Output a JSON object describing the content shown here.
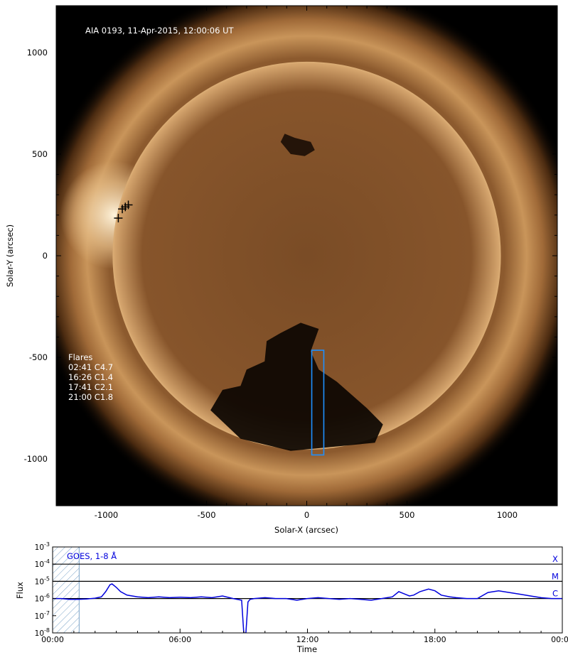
{
  "image_panel": {
    "header": "AIA 0193, 11-Apr-2015, 12:00:06 UT",
    "xlabel": "Solar-X (arcsec)",
    "ylabel": "Solar-Y (arcsec)",
    "xlim": [
      -1250,
      1250
    ],
    "ylim": [
      -1230,
      1230
    ],
    "x_ticks": [
      -1000,
      -500,
      0,
      500,
      1000
    ],
    "y_ticks": [
      1000,
      500,
      0,
      -500,
      -1000
    ],
    "solar_radius_arcsec": 965,
    "flares": {
      "heading": "Flares",
      "items": [
        "02:41 C4.7",
        "16:26 C1.4",
        "17:41 C2.1",
        "21:00 C1.8"
      ]
    },
    "flare_markers": [
      {
        "x": -940,
        "y": 185
      },
      {
        "x": -905,
        "y": 240
      },
      {
        "x": -890,
        "y": 250
      },
      {
        "x": -920,
        "y": 230
      }
    ],
    "selection_box": {
      "x0": 25,
      "x1": 85,
      "y0": -980,
      "y1": -465,
      "color": "#1e90ff"
    },
    "colors": {
      "background": "#000000",
      "text": "#ffffff",
      "disk": "#8a5a2b"
    }
  },
  "chart_data": {
    "type": "line",
    "legend": "GOES, 1-8 Å",
    "xlabel": "Time",
    "ylabel": "Flux",
    "xlim": [
      0,
      24
    ],
    "ylim_log10": [
      -8,
      -3
    ],
    "x_ticks": [
      "00:00",
      "06:00",
      "12:00",
      "18:00",
      "00:00"
    ],
    "y_ticks": [
      "10-3",
      "10-4",
      "10-5",
      "10-6",
      "10-7",
      "10-8"
    ],
    "class_levels": [
      {
        "label": "X",
        "log10_flux": -4
      },
      {
        "label": "M",
        "log10_flux": -5
      },
      {
        "label": "C",
        "log10_flux": -6
      }
    ],
    "hatched_interval_hours": [
      0,
      1.25
    ],
    "color": "#0000dd",
    "series": [
      {
        "x": [
          0,
          0.4,
          0.8,
          1.2,
          1.6,
          2.0,
          2.3,
          2.5,
          2.7,
          2.8,
          3.0,
          3.2,
          3.5,
          4.0,
          4.5,
          5.0,
          5.5,
          6.0,
          6.5,
          7.0,
          7.5,
          8.0,
          8.5,
          8.9,
          9.0,
          9.1,
          9.2,
          9.3,
          9.5,
          10.0,
          10.5,
          11.0,
          11.5,
          12.0,
          12.5,
          13.0,
          13.5,
          14.0,
          14.5,
          15.0,
          15.5,
          16.0,
          16.3,
          16.5,
          16.8,
          17.0,
          17.3,
          17.7,
          18.0,
          18.3,
          18.7,
          19.0,
          19.5,
          20.0,
          20.5,
          21.0,
          21.5,
          22.0,
          22.5,
          23.0,
          23.5,
          24.0
        ],
        "log10_flux": [
          -6.0,
          -6.0,
          -6.05,
          -6.05,
          -6.03,
          -5.98,
          -5.9,
          -5.6,
          -5.2,
          -5.15,
          -5.35,
          -5.6,
          -5.8,
          -5.9,
          -5.95,
          -5.9,
          -5.95,
          -5.92,
          -5.95,
          -5.9,
          -5.95,
          -5.85,
          -6.0,
          -6.1,
          -8.0,
          -8.0,
          -6.2,
          -6.05,
          -6.0,
          -5.95,
          -6.0,
          -6.0,
          -6.1,
          -6.0,
          -5.95,
          -6.0,
          -6.05,
          -6.0,
          -6.05,
          -6.1,
          -6.0,
          -5.9,
          -5.6,
          -5.7,
          -5.85,
          -5.8,
          -5.6,
          -5.45,
          -5.55,
          -5.8,
          -5.9,
          -5.95,
          -6.0,
          -6.0,
          -5.65,
          -5.55,
          -5.65,
          -5.75,
          -5.85,
          -5.95,
          -6.0,
          -6.0
        ]
      }
    ]
  }
}
